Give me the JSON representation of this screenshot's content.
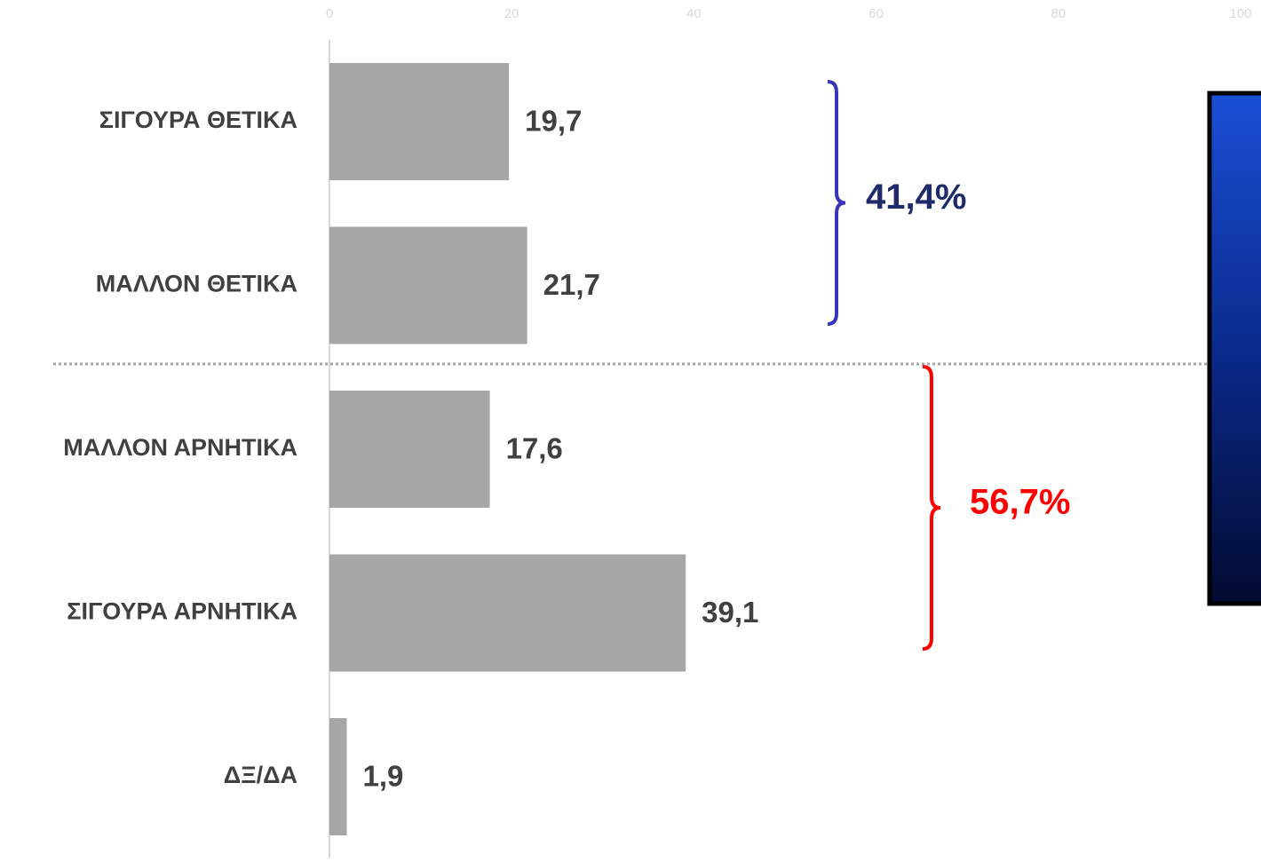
{
  "chart_data": {
    "type": "hbar",
    "categories": [
      "ΣΙΓΟΥΡΑ ΘΕΤΙΚΑ",
      "ΜΑΛΛΟΝ ΘΕΤΙΚΑ",
      "ΜΑΛΛΟΝ ΑΡΝΗΤΙΚΑ",
      "ΣΙΓΟΥΡΑ ΑΡΝΗΤΙΚΑ",
      "ΔΞ/ΔΑ"
    ],
    "values": [
      19.7,
      21.7,
      17.6,
      39.1,
      1.9
    ],
    "value_labels": [
      "19,7",
      "21,7",
      "17,6",
      "39,1",
      "1,9"
    ],
    "color": "#a6a6a6",
    "xlim": [
      0,
      100
    ],
    "xticks": [
      0,
      20,
      40,
      60,
      80,
      100
    ],
    "annotations": [
      {
        "text": "41,4%",
        "color": "#1f2a6b",
        "bracket_color": "#3a35b8"
      },
      {
        "text": "56,7%",
        "color": "#ff0000",
        "bracket_color": "#ff0000"
      }
    ]
  }
}
